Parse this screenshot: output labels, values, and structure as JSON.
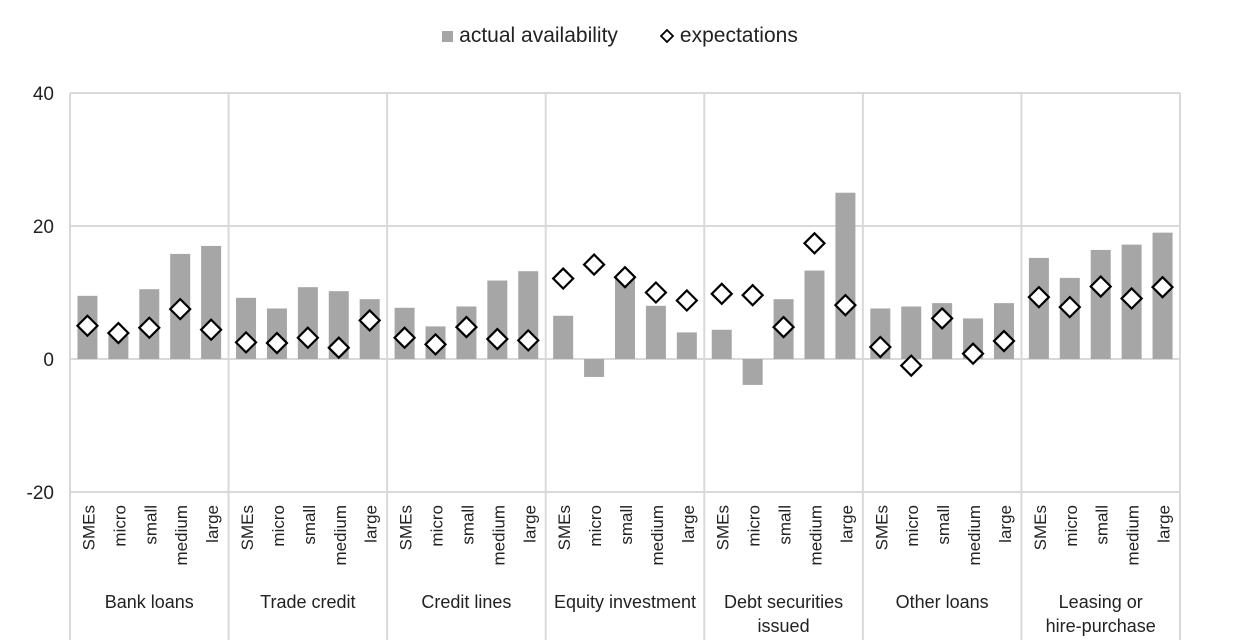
{
  "chart_data": {
    "type": "bar",
    "title": "",
    "xlabel": "",
    "ylabel": "",
    "ylim": [
      -20,
      40
    ],
    "yticks": [
      -20,
      0,
      20,
      40
    ],
    "grid": true,
    "legend_position": "top-center",
    "colors": {
      "bar": "#a6a6a6",
      "marker_fill": "#ffffff",
      "marker_stroke": "#000000",
      "grid": "#d9d9d9"
    },
    "groups": [
      {
        "name": "Bank loans",
        "categories": [
          "SMEs",
          "micro",
          "small",
          "medium",
          "large"
        ]
      },
      {
        "name": "Trade credit",
        "categories": [
          "SMEs",
          "micro",
          "small",
          "medium",
          "large"
        ]
      },
      {
        "name": "Credit lines",
        "categories": [
          "SMEs",
          "micro",
          "small",
          "medium",
          "large"
        ]
      },
      {
        "name": "Equity investment",
        "categories": [
          "SMEs",
          "micro",
          "small",
          "medium",
          "large"
        ]
      },
      {
        "name": "Debt securities issued",
        "label_lines": [
          "Debt securities",
          "issued"
        ],
        "categories": [
          "SMEs",
          "micro",
          "small",
          "medium",
          "large"
        ]
      },
      {
        "name": "Other loans",
        "categories": [
          "SMEs",
          "micro",
          "small",
          "medium",
          "large"
        ]
      },
      {
        "name": "Leasing or hire-purchase",
        "label_lines": [
          "Leasing or",
          "hire-purchase"
        ],
        "categories": [
          "SMEs",
          "micro",
          "small",
          "medium",
          "large"
        ]
      }
    ],
    "series": [
      {
        "name": "actual availability",
        "type": "bar",
        "values": [
          [
            9.5,
            3.5,
            10.5,
            15.8,
            17.0
          ],
          [
            9.2,
            7.6,
            10.8,
            10.2,
            9.0
          ],
          [
            7.7,
            4.9,
            7.9,
            11.8,
            13.2
          ],
          [
            6.5,
            -2.7,
            12.0,
            8.0,
            4.0
          ],
          [
            4.4,
            -3.9,
            9.0,
            13.3,
            25.0
          ],
          [
            7.6,
            7.9,
            8.4,
            6.1,
            8.4
          ],
          [
            15.2,
            12.2,
            16.4,
            17.2,
            19.0
          ]
        ]
      },
      {
        "name": "expectations",
        "type": "scatter",
        "marker": "diamond",
        "values": [
          [
            5.0,
            3.9,
            4.7,
            7.5,
            4.4
          ],
          [
            2.5,
            2.4,
            3.2,
            1.7,
            5.8
          ],
          [
            3.2,
            2.2,
            4.8,
            3.0,
            2.8
          ],
          [
            12.1,
            14.2,
            12.3,
            10.0,
            8.8
          ],
          [
            9.8,
            9.6,
            4.8,
            17.4,
            8.1
          ],
          [
            1.8,
            -1.0,
            6.1,
            0.8,
            2.7
          ],
          [
            9.3,
            7.8,
            10.9,
            9.1,
            10.8
          ]
        ]
      }
    ]
  }
}
